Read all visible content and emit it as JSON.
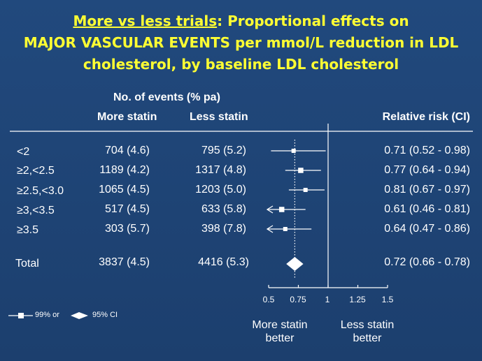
{
  "title": {
    "line1_underlined": "More vs less trials",
    "line1_rest": ": Proportional effects on",
    "line2": "MAJOR VASCULAR EVENTS per mmol/L reduction in LDL",
    "line3": "cholesterol, by baseline LDL cholesterol"
  },
  "headers": {
    "events_group": "No. of events (% pa)",
    "more_statin": "More statin",
    "less_statin": "Less statin",
    "relative_risk": "Relative risk (CI)"
  },
  "rows": [
    {
      "label": "<2",
      "more": "704 (4.6)",
      "less": "795 (5.2)",
      "rr_text": "0.71 (0.52 - 0.98)"
    },
    {
      "label": "≥2,<2.5",
      "more": "1189 (4.2)",
      "less": "1317 (4.8)",
      "rr_text": "0.77 (0.64 - 0.94)"
    },
    {
      "label": "≥2.5,<3.0",
      "more": "1065 (4.5)",
      "less": "1203 (5.0)",
      "rr_text": "0.81 (0.67 - 0.97)"
    },
    {
      "label": "≥3,<3.5",
      "more": "517 (4.5)",
      "less": "633 (5.8)",
      "rr_text": "0.61 (0.46 - 0.81)"
    },
    {
      "label": "≥3.5",
      "more": "303 (5.7)",
      "less": "398 (7.8)",
      "rr_text": "0.64 (0.47 - 0.86)"
    }
  ],
  "total": {
    "label": "Total",
    "more": "3837 (4.5)",
    "less": "4416 (5.3)",
    "rr_text": "0.72 (0.66 - 0.78)"
  },
  "axis": {
    "ticks": [
      "0.5",
      "0.75",
      "1",
      "1.25",
      "1.5"
    ]
  },
  "footer": {
    "more_better_1": "More statin",
    "more_better_2": "better",
    "less_better_1": "Less statin",
    "less_better_2": "better"
  },
  "legend": {
    "square_label": "99% or",
    "diamond_label": "95% CI"
  },
  "colors": {
    "background": "#1f4577",
    "title": "#ffff33",
    "text": "#ffffff"
  },
  "chart_data": {
    "type": "forest",
    "xlim": [
      0.5,
      1.5
    ],
    "x_ticks": [
      0.5,
      0.75,
      1,
      1.25,
      1.5
    ],
    "reference_line": 1,
    "overall_dotted_line": 0.72,
    "subgroups": [
      {
        "label": "<2",
        "rr": 0.71,
        "lo": 0.52,
        "hi": 0.98
      },
      {
        "label": "≥2,<2.5",
        "rr": 0.77,
        "lo": 0.64,
        "hi": 0.94
      },
      {
        "label": "≥2.5,<3.0",
        "rr": 0.81,
        "lo": 0.67,
        "hi": 0.97
      },
      {
        "label": "≥3,<3.5",
        "rr": 0.61,
        "lo": 0.46,
        "hi": 0.81
      },
      {
        "label": "≥3.5",
        "rr": 0.64,
        "lo": 0.47,
        "hi": 0.86
      }
    ],
    "overall": {
      "label": "Total",
      "rr": 0.72,
      "lo": 0.66,
      "hi": 0.78
    }
  }
}
